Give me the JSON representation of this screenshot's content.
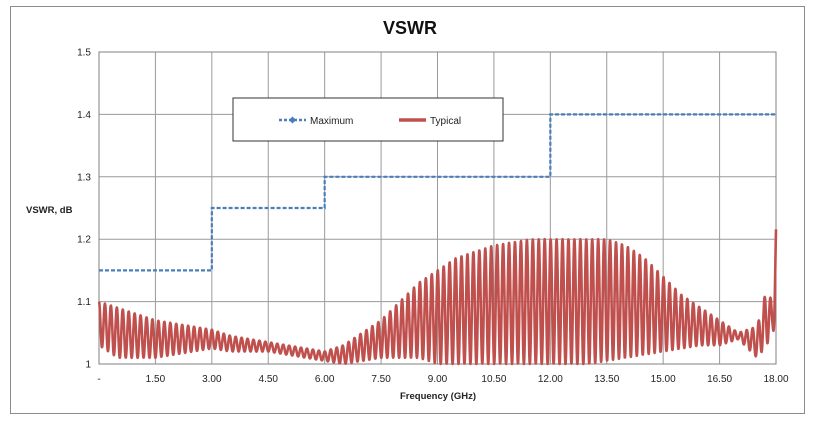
{
  "chart_data": {
    "type": "line",
    "title": "VSWR",
    "xlabel": "Frequency (GHz)",
    "ylabel": "VSWR, dB",
    "xlim": [
      0,
      18
    ],
    "ylim": [
      1,
      1.5
    ],
    "x_ticks": [
      0,
      1.5,
      3,
      4.5,
      6,
      7.5,
      9,
      10.5,
      12,
      13.5,
      15,
      16.5,
      18
    ],
    "x_tick_labels": [
      "-",
      "1.50",
      "3.00",
      "4.50",
      "6.00",
      "7.50",
      "9.00",
      "10.50",
      "12.00",
      "13.50",
      "15.00",
      "16.50",
      "18.00"
    ],
    "y_ticks": [
      1,
      1.1,
      1.2,
      1.3,
      1.4,
      1.5
    ],
    "y_tick_labels": [
      "1",
      "1.1",
      "1.2",
      "1.3",
      "1.4",
      "1.5"
    ],
    "grid": true,
    "legend_position": "top-center",
    "series": [
      {
        "name": "Maximum",
        "color": "#4a7ebb",
        "style": "dashed",
        "x": [
          0,
          3,
          3,
          6,
          6,
          12,
          12,
          18
        ],
        "y": [
          1.15,
          1.15,
          1.25,
          1.25,
          1.3,
          1.3,
          1.4,
          1.4
        ]
      },
      {
        "name": "Typical",
        "color": "#c0504d",
        "style": "solid",
        "x": [
          0,
          0.25,
          0.5,
          1,
          1.5,
          2,
          2.5,
          3,
          3.5,
          4,
          4.5,
          5,
          5.5,
          6,
          6.5,
          7,
          7.5,
          8,
          8.5,
          9,
          9.5,
          10,
          10.5,
          11,
          11.5,
          12,
          12.5,
          13,
          13.5,
          14,
          14.5,
          15,
          15.5,
          16,
          16.5,
          17,
          17.5,
          17.75,
          17.9,
          18
        ],
        "upper": [
          1.1,
          1.095,
          1.09,
          1.08,
          1.07,
          1.065,
          1.06,
          1.055,
          1.045,
          1.04,
          1.035,
          1.03,
          1.025,
          1.02,
          1.03,
          1.05,
          1.07,
          1.1,
          1.13,
          1.15,
          1.17,
          1.18,
          1.19,
          1.195,
          1.2,
          1.2,
          1.2,
          1.2,
          1.2,
          1.19,
          1.17,
          1.14,
          1.11,
          1.09,
          1.07,
          1.05,
          1.06,
          1.12,
          1.1,
          1.225
        ],
        "lower": [
          1.03,
          1.02,
          1.01,
          1.01,
          1.01,
          1.015,
          1.02,
          1.025,
          1.02,
          1.02,
          1.02,
          1.015,
          1.01,
          1.005,
          1.0,
          1.005,
          1.01,
          1.01,
          1.01,
          1.0,
          1.0,
          1.0,
          1.0,
          1.0,
          1.0,
          1.0,
          1.0,
          1.0,
          1.005,
          1.01,
          1.015,
          1.02,
          1.025,
          1.03,
          1.03,
          1.04,
          1.01,
          1.03,
          1.05,
          1.06
        ]
      }
    ]
  }
}
